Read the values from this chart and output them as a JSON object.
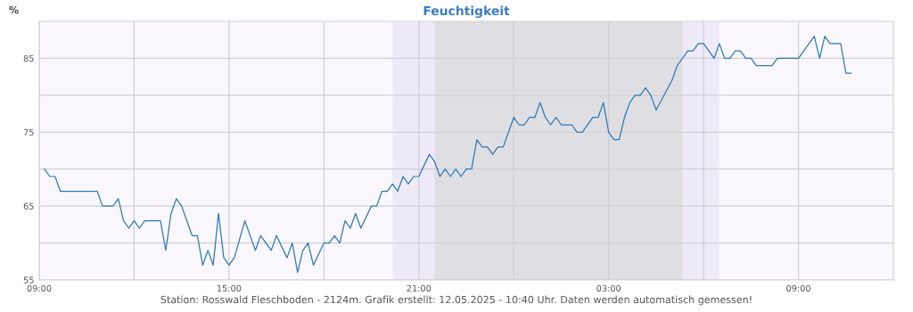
{
  "chart_data": {
    "type": "line",
    "title": "Feuchtigkeit",
    "ylabel": "%",
    "x": [
      "2025-05-11T09:10",
      "2025-05-11T09:20",
      "2025-05-11T09:30",
      "2025-05-11T09:40",
      "2025-05-11T10:50",
      "2025-05-11T11:00",
      "2025-05-11T11:20",
      "2025-05-11T11:30",
      "2025-05-11T11:40",
      "2025-05-11T11:50",
      "2025-05-11T12:00",
      "2025-05-11T12:10",
      "2025-05-11T12:20",
      "2025-05-11T12:50",
      "2025-05-11T13:00",
      "2025-05-11T13:10",
      "2025-05-11T13:20",
      "2025-05-11T13:30",
      "2025-05-11T13:50",
      "2025-05-11T14:00",
      "2025-05-11T14:10",
      "2025-05-11T14:20",
      "2025-05-11T14:30",
      "2025-05-11T14:40",
      "2025-05-11T14:50",
      "2025-05-11T15:00",
      "2025-05-11T15:10",
      "2025-05-11T15:30",
      "2025-05-11T15:50",
      "2025-05-11T16:00",
      "2025-05-11T16:20",
      "2025-05-11T16:30",
      "2025-05-11T16:50",
      "2025-05-11T17:00",
      "2025-05-11T17:10",
      "2025-05-11T17:20",
      "2025-05-11T17:30",
      "2025-05-11T17:40",
      "2025-05-11T18:00",
      "2025-05-11T18:10",
      "2025-05-11T18:20",
      "2025-05-11T18:30",
      "2025-05-11T18:40",
      "2025-05-11T18:50",
      "2025-05-11T19:00",
      "2025-05-11T19:10",
      "2025-05-11T19:30",
      "2025-05-11T19:40",
      "2025-05-11T19:50",
      "2025-05-11T20:00",
      "2025-05-11T20:10",
      "2025-05-11T20:20",
      "2025-05-11T20:30",
      "2025-05-11T20:40",
      "2025-05-11T20:50",
      "2025-05-11T21:00",
      "2025-05-11T21:20",
      "2025-05-11T21:30",
      "2025-05-11T21:40",
      "2025-05-11T21:50",
      "2025-05-11T22:00",
      "2025-05-11T22:10",
      "2025-05-11T22:20",
      "2025-05-11T22:30",
      "2025-05-11T22:40",
      "2025-05-11T22:50",
      "2025-05-11T23:00",
      "2025-05-11T23:10",
      "2025-05-11T23:20",
      "2025-05-11T23:30",
      "2025-05-11T23:40",
      "2025-05-12T00:00",
      "2025-05-12T00:10",
      "2025-05-12T00:20",
      "2025-05-12T00:30",
      "2025-05-12T00:40",
      "2025-05-12T00:50",
      "2025-05-12T01:00",
      "2025-05-12T01:10",
      "2025-05-12T01:20",
      "2025-05-12T01:30",
      "2025-05-12T01:50",
      "2025-05-12T02:00",
      "2025-05-12T02:10",
      "2025-05-12T02:30",
      "2025-05-12T02:40",
      "2025-05-12T02:50",
      "2025-05-12T03:00",
      "2025-05-12T03:10",
      "2025-05-12T03:20",
      "2025-05-12T03:30",
      "2025-05-12T03:40",
      "2025-05-12T03:50",
      "2025-05-12T04:00",
      "2025-05-12T04:10",
      "2025-05-12T04:20",
      "2025-05-12T04:30",
      "2025-05-12T05:00",
      "2025-05-12T05:10",
      "2025-05-12T05:30",
      "2025-05-12T05:40",
      "2025-05-12T05:50",
      "2025-05-12T06:00",
      "2025-05-12T06:20",
      "2025-05-12T06:30",
      "2025-05-12T06:40",
      "2025-05-12T06:50",
      "2025-05-12T07:00",
      "2025-05-12T07:10",
      "2025-05-12T07:20",
      "2025-05-12T07:30",
      "2025-05-12T07:40",
      "2025-05-12T08:10",
      "2025-05-12T08:20",
      "2025-05-12T09:00",
      "2025-05-12T09:30",
      "2025-05-12T09:40",
      "2025-05-12T09:50",
      "2025-05-12T10:00",
      "2025-05-12T10:20",
      "2025-05-12T10:30",
      "2025-05-12T10:40"
    ],
    "series": [
      {
        "color": "#2e78b7",
        "values": [
          70,
          69,
          69,
          67,
          67,
          65,
          65,
          66,
          63,
          62,
          63,
          62,
          63,
          63,
          59,
          64,
          66,
          65,
          61,
          61,
          57,
          59,
          57,
          64,
          58,
          57,
          58,
          63,
          59,
          61,
          59,
          61,
          58,
          60,
          56,
          59,
          60,
          57,
          60,
          60,
          61,
          60,
          63,
          62,
          64,
          62,
          65,
          65,
          67,
          67,
          68,
          67,
          69,
          68,
          69,
          69,
          72,
          71,
          69,
          70,
          69,
          70,
          69,
          70,
          70,
          74,
          73,
          73,
          72,
          73,
          73,
          77,
          76,
          76,
          77,
          77,
          79,
          77,
          76,
          77,
          76,
          76,
          75,
          75,
          77,
          77,
          79,
          75,
          74,
          74,
          77,
          79,
          80,
          80,
          81,
          80,
          78,
          82,
          84,
          86,
          86,
          87,
          87,
          85,
          87,
          85,
          85,
          86,
          86,
          85,
          85,
          84,
          84,
          85,
          85,
          88,
          85,
          88,
          87,
          87,
          83,
          83
        ]
      }
    ],
    "xlim": [
      "2025-05-11T09:00",
      "2025-05-12T12:00"
    ],
    "ylim": [
      55,
      90
    ],
    "xticks": [
      {
        "value": "2025-05-11T09:00",
        "label": "09:00"
      },
      {
        "value": "2025-05-11T12:00",
        "label": null
      },
      {
        "value": "2025-05-11T15:00",
        "label": "15:00"
      },
      {
        "value": "2025-05-11T18:00",
        "label": null
      },
      {
        "value": "2025-05-11T21:00",
        "label": "21:00"
      },
      {
        "value": "2025-05-12T00:00",
        "label": null
      },
      {
        "value": "2025-05-12T03:00",
        "label": "03:00"
      },
      {
        "value": "2025-05-12T06:00",
        "label": null
      },
      {
        "value": "2025-05-12T09:00",
        "label": "09:00"
      }
    ],
    "yticks": [
      55,
      {
        "value": 60,
        "label": null
      },
      65,
      {
        "value": 70,
        "label": null
      },
      75,
      {
        "value": 80,
        "label": null
      },
      85
    ],
    "grid": true,
    "marker": "none",
    "line_style": "solid",
    "bands": [
      {
        "axis": "x",
        "from": "2025-05-11T20:10",
        "to": "2025-05-12T06:30",
        "color": "#efeaf8"
      },
      {
        "axis": "x",
        "from": "2025-05-11T21:30",
        "to": "2025-05-12T05:20",
        "color": "#dfdfe3"
      }
    ],
    "annotations": [
      "Station: Rosswald Fleschboden - 2124m. Grafik erstellt: 12.05.2025 - 10:40 Uhr. Daten werden automatisch gemessen!"
    ]
  }
}
